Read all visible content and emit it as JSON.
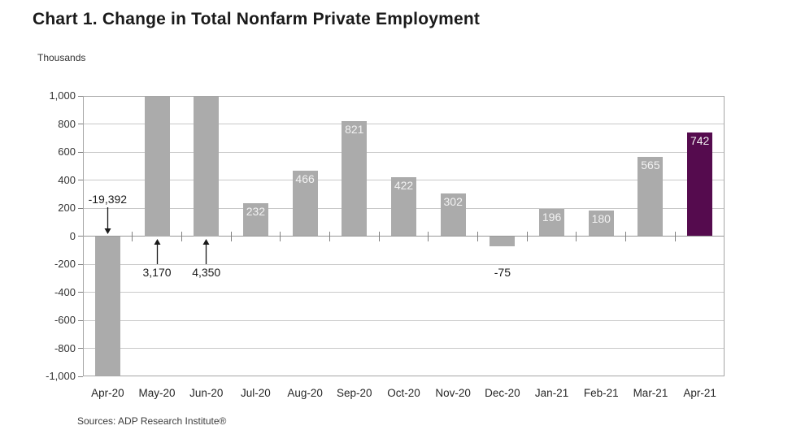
{
  "chart_data": {
    "type": "bar",
    "title": "Chart 1. Change in Total Nonfarm Private Employment",
    "unit_label": "Thousands",
    "source": "Sources: ADP Research Institute®",
    "categories": [
      "Apr-20",
      "May-20",
      "Jun-20",
      "Jul-20",
      "Aug-20",
      "Sep-20",
      "Oct-20",
      "Nov-20",
      "Dec-20",
      "Jan-21",
      "Feb-21",
      "Mar-21",
      "Apr-21"
    ],
    "values": [
      -19392,
      3170,
      4350,
      232,
      466,
      821,
      422,
      302,
      -75,
      196,
      180,
      565,
      742
    ],
    "bar_labels": [
      null,
      null,
      null,
      "232",
      "466",
      "821",
      "422",
      "302",
      null,
      "196",
      "180",
      "565",
      "742"
    ],
    "annotations": [
      {
        "category": "Apr-20",
        "label": "-19,392",
        "arrow": "down",
        "placement": "above-axis"
      },
      {
        "category": "May-20",
        "label": "3,170",
        "arrow": "up",
        "placement": "below-axis"
      },
      {
        "category": "Jun-20",
        "label": "4,350",
        "arrow": "up",
        "placement": "below-axis"
      },
      {
        "category": "Dec-20",
        "label": "-75",
        "arrow": "none",
        "placement": "below-axis"
      }
    ],
    "xlabel": "",
    "ylabel": "Thousands",
    "ylim": [
      -1000,
      1000
    ],
    "ytick_step": 200,
    "ytick_labels": [
      "1,000",
      "800",
      "600",
      "400",
      "200",
      "0",
      "-200",
      "-400",
      "-600",
      "-800",
      "-1,000"
    ],
    "values_clipped_to_ylim": true,
    "grid": "horizontal",
    "legend": "none",
    "highlight_category": "Apr-21",
    "colors": {
      "bar": "#ababab",
      "highlight_bar": "#550b4e",
      "bar_label_text": "#f2f2f2",
      "gridline": "#c9c9c9",
      "zero_line": "#999999",
      "plot_border": "#a6a6a6",
      "tick": "#808080",
      "axis_text": "#333333",
      "x_axis_text": "#262626",
      "annotation_text": "#1a1a1a"
    }
  }
}
